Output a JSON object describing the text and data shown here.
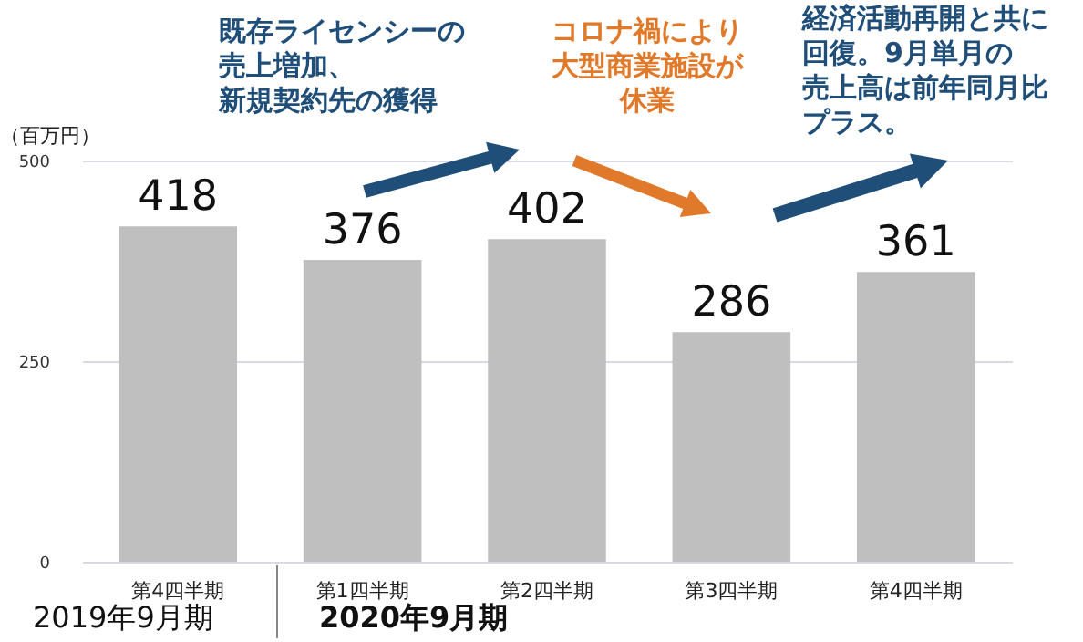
{
  "chart_data": {
    "type": "bar",
    "ylabel": "（百万円）",
    "categories": [
      "第4四半期",
      "第1四半期",
      "第2四半期",
      "第3四半期",
      "第4四半期"
    ],
    "values": [
      418,
      376,
      402,
      286,
      361
    ],
    "color": "#bfbfbf",
    "ylim": [
      0,
      500
    ],
    "yticks": [
      0,
      250,
      500
    ],
    "grid": "y",
    "data_labels": true,
    "annotations": [
      "既存ライセンシーの売上増加、新規契約先の獲得",
      "コロナ禍により大型商業施設が休業",
      "経済活動再開と共に回復。9月単月の売上高は前年同月比プラス。",
      "2019年9月期",
      "2020年9月期"
    ]
  }
}
